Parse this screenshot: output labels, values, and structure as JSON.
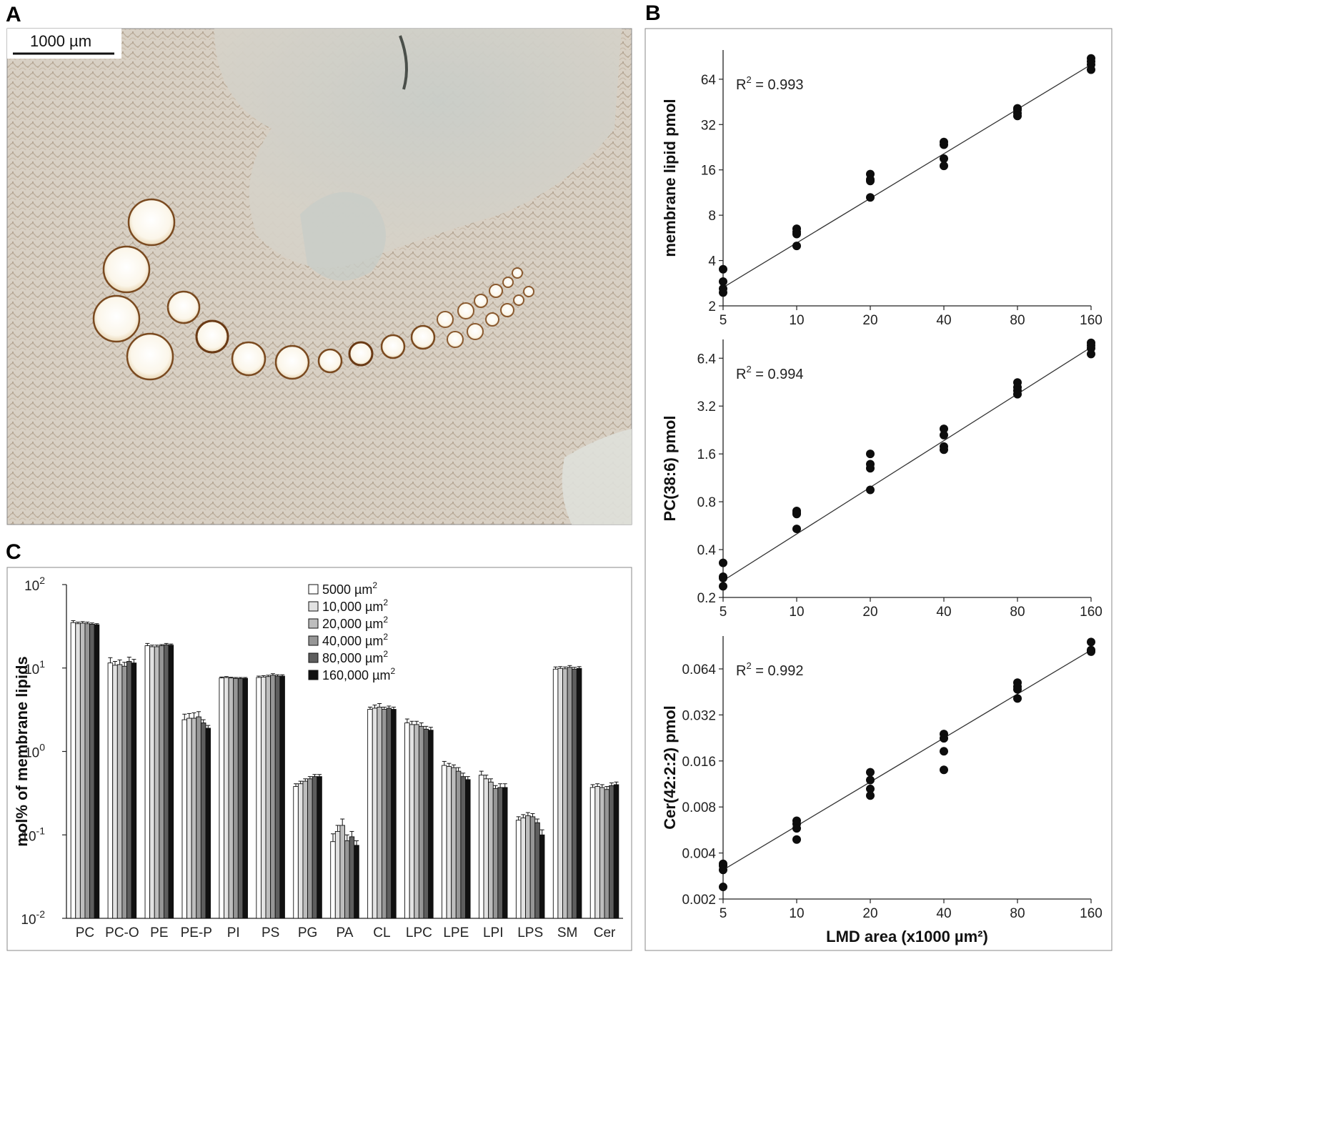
{
  "panels": {
    "A": {
      "letter": "A",
      "scale_bar_label": "1000 µm"
    },
    "B": {
      "letter": "B"
    },
    "C": {
      "letter": "C"
    }
  },
  "chart_data": [
    {
      "id": "B1",
      "type": "scatter",
      "title": "",
      "xlabel": "",
      "ylabel": "membrane lipid pmol",
      "xscale": "log2",
      "yscale": "log2",
      "xlim": [
        5,
        160
      ],
      "ylim": [
        2,
        100
      ],
      "xticks": [
        5,
        10,
        20,
        40,
        80,
        160
      ],
      "yticks": [
        2,
        4,
        8,
        16,
        32,
        64
      ],
      "ytick_labels": [
        "2",
        "4",
        "8",
        "16",
        "32",
        "64"
      ],
      "r2_label": "R",
      "r2_sup": "2",
      "r2_value": " = 0.993",
      "points": [
        [
          5,
          3.5
        ],
        [
          5,
          2.9
        ],
        [
          5,
          2.6
        ],
        [
          5,
          2.45
        ],
        [
          10,
          6.5
        ],
        [
          10,
          6.2
        ],
        [
          10,
          6.0
        ],
        [
          10,
          5.0
        ],
        [
          20,
          15.0
        ],
        [
          20,
          13.8
        ],
        [
          20,
          13.5
        ],
        [
          20,
          10.5
        ],
        [
          40,
          24.5
        ],
        [
          40,
          23.5
        ],
        [
          40,
          19.0
        ],
        [
          40,
          17.0
        ],
        [
          80,
          41.0
        ],
        [
          80,
          40.0
        ],
        [
          80,
          38.0
        ],
        [
          80,
          36.5
        ],
        [
          160,
          88.0
        ],
        [
          160,
          84.0
        ],
        [
          160,
          80.0
        ],
        [
          160,
          74.0
        ]
      ],
      "fit": [
        [
          5,
          2.65
        ],
        [
          160,
          80.0
        ]
      ]
    },
    {
      "id": "B2",
      "type": "scatter",
      "title": "",
      "xlabel": "",
      "ylabel": "PC(38:6) pmol",
      "xscale": "log2",
      "yscale": "log2",
      "xlim": [
        5,
        160
      ],
      "ylim": [
        0.2,
        8.4
      ],
      "xticks": [
        5,
        10,
        20,
        40,
        80,
        160
      ],
      "yticks": [
        0.2,
        0.4,
        0.8,
        1.6,
        3.2,
        6.4
      ],
      "ytick_labels": [
        "0.2",
        "0.4",
        "0.8",
        "1.6",
        "3.2",
        "6.4"
      ],
      "r2_label": "R",
      "r2_sup": "2",
      "r2_value": " = 0.994",
      "points": [
        [
          5,
          0.33
        ],
        [
          5,
          0.27
        ],
        [
          5,
          0.265
        ],
        [
          5,
          0.235
        ],
        [
          10,
          0.7
        ],
        [
          10,
          0.68
        ],
        [
          10,
          0.67
        ],
        [
          10,
          0.54
        ],
        [
          20,
          1.6
        ],
        [
          20,
          1.38
        ],
        [
          20,
          1.3
        ],
        [
          20,
          0.95
        ],
        [
          40,
          2.3
        ],
        [
          40,
          2.1
        ],
        [
          40,
          1.78
        ],
        [
          40,
          1.7
        ],
        [
          80,
          4.5
        ],
        [
          80,
          4.2
        ],
        [
          80,
          4.0
        ],
        [
          80,
          3.8
        ],
        [
          160,
          8.0
        ],
        [
          160,
          7.7
        ],
        [
          160,
          7.4
        ],
        [
          160,
          6.8
        ]
      ],
      "fit": [
        [
          5,
          0.255
        ],
        [
          160,
          7.5
        ]
      ]
    },
    {
      "id": "B3",
      "type": "scatter",
      "title": "",
      "xlabel": "LMD area (x1000 µm²)",
      "ylabel": "Cer(42:2:2) pmol",
      "xscale": "log2",
      "yscale": "log2",
      "xlim": [
        5,
        160
      ],
      "ylim": [
        0.002,
        0.105
      ],
      "xticks": [
        5,
        10,
        20,
        40,
        80,
        160
      ],
      "yticks": [
        0.002,
        0.004,
        0.008,
        0.016,
        0.032,
        0.064
      ],
      "ytick_labels": [
        "0.002",
        "0.004",
        "0.008",
        "0.016",
        "0.032",
        "0.064"
      ],
      "r2_label": "R",
      "r2_sup": "2",
      "r2_value": " = 0.992",
      "points": [
        [
          5,
          0.0034
        ],
        [
          5,
          0.0033
        ],
        [
          5,
          0.0031
        ],
        [
          5,
          0.0024
        ],
        [
          10,
          0.0065
        ],
        [
          10,
          0.0062
        ],
        [
          10,
          0.0058
        ],
        [
          10,
          0.0049
        ],
        [
          20,
          0.0135
        ],
        [
          20,
          0.012
        ],
        [
          20,
          0.0105
        ],
        [
          20,
          0.0095
        ],
        [
          40,
          0.024
        ],
        [
          40,
          0.0225
        ],
        [
          40,
          0.0185
        ],
        [
          40,
          0.014
        ],
        [
          80,
          0.052
        ],
        [
          80,
          0.049
        ],
        [
          80,
          0.047
        ],
        [
          80,
          0.041
        ],
        [
          160,
          0.096
        ],
        [
          160,
          0.085
        ],
        [
          160,
          0.084
        ],
        [
          160,
          0.083
        ]
      ],
      "fit": [
        [
          5,
          0.0031
        ],
        [
          160,
          0.085
        ]
      ]
    },
    {
      "id": "C",
      "type": "bar",
      "title": "",
      "xlabel": "",
      "ylabel": "mol% of membrane lipids",
      "yscale": "log10",
      "ylim": [
        0.01,
        100
      ],
      "ytick_base": "10",
      "ytick_exps": [
        "2",
        "1",
        "0",
        "-1",
        "-2"
      ],
      "categories": [
        "PC",
        "PC-O",
        "PE",
        "PE-P",
        "PI",
        "PS",
        "PG",
        "PA",
        "CL",
        "LPC",
        "LPE",
        "LPI",
        "LPS",
        "SM",
        "Cer"
      ],
      "series": [
        {
          "name": "5000 µm",
          "sup": "2",
          "color": "#ffffff",
          "values": [
            35,
            11.5,
            18.5,
            2.4,
            7.6,
            7.7,
            0.38,
            0.083,
            3.2,
            2.2,
            0.68,
            0.52,
            0.15,
            9.7,
            0.37
          ],
          "errors": [
            2,
            1.8,
            1.2,
            0.4,
            0.2,
            0.3,
            0.03,
            0.02,
            0.2,
            0.25,
            0.08,
            0.06,
            0.015,
            0.6,
            0.03
          ]
        },
        {
          "name": "10,000 µm",
          "sup": "2",
          "color": "#e2e2e2",
          "values": [
            34,
            10.8,
            18,
            2.5,
            7.7,
            7.8,
            0.41,
            0.11,
            3.3,
            2.1,
            0.66,
            0.47,
            0.16,
            9.9,
            0.38
          ],
          "errors": [
            1.5,
            1.2,
            0.8,
            0.35,
            0.2,
            0.3,
            0.03,
            0.02,
            0.3,
            0.2,
            0.06,
            0.05,
            0.015,
            0.5,
            0.03
          ]
        },
        {
          "name": "20,000 µm",
          "sup": "2",
          "color": "#bdbdbd",
          "values": [
            34.5,
            11,
            18,
            2.5,
            7.6,
            7.9,
            0.44,
            0.13,
            3.4,
            2.1,
            0.64,
            0.43,
            0.17,
            9.8,
            0.37
          ],
          "errors": [
            1.5,
            1.5,
            0.8,
            0.4,
            0.15,
            0.3,
            0.03,
            0.025,
            0.35,
            0.2,
            0.05,
            0.04,
            0.015,
            0.5,
            0.03
          ]
        },
        {
          "name": "40,000 µm",
          "sup": "2",
          "color": "#969696",
          "values": [
            34,
            10.5,
            18.5,
            2.6,
            7.5,
            8.2,
            0.47,
            0.085,
            3.2,
            2.0,
            0.58,
            0.36,
            0.165,
            10.2,
            0.35
          ],
          "errors": [
            1.5,
            1.2,
            0.6,
            0.4,
            0.2,
            0.35,
            0.03,
            0.015,
            0.2,
            0.2,
            0.06,
            0.03,
            0.015,
            0.5,
            0.03
          ]
        },
        {
          "name": "80,000 µm",
          "sup": "2",
          "color": "#5e5e5e",
          "values": [
            33.5,
            12,
            19,
            2.2,
            7.5,
            8.0,
            0.5,
            0.095,
            3.3,
            1.85,
            0.5,
            0.37,
            0.14,
            9.7,
            0.39
          ],
          "errors": [
            1.2,
            1.5,
            0.7,
            0.2,
            0.2,
            0.3,
            0.03,
            0.015,
            0.2,
            0.15,
            0.05,
            0.04,
            0.015,
            0.5,
            0.03
          ]
        },
        {
          "name": "160,000 µm",
          "sup": "2",
          "color": "#111111",
          "values": [
            33,
            11.5,
            18.8,
            1.9,
            7.5,
            8.0,
            0.5,
            0.075,
            3.2,
            1.8,
            0.46,
            0.37,
            0.1,
            9.9,
            0.4
          ],
          "errors": [
            1,
            1.2,
            0.6,
            0.15,
            0.2,
            0.3,
            0.03,
            0.01,
            0.2,
            0.15,
            0.04,
            0.04,
            0.015,
            0.5,
            0.03
          ]
        }
      ]
    }
  ]
}
